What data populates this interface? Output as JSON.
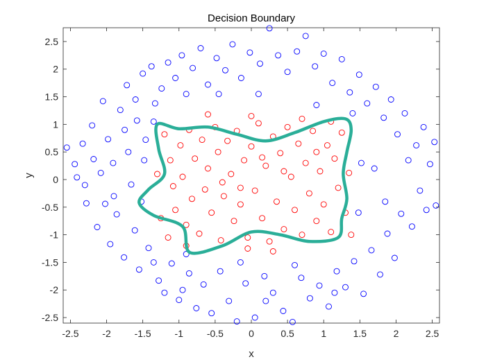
{
  "chart_data": {
    "type": "scatter",
    "title": "Decision Boundary",
    "xlabel": "x",
    "ylabel": "y",
    "xlim": [
      -2.6,
      2.6
    ],
    "ylim": [
      -2.6,
      2.75
    ],
    "xticks": [
      -2.5,
      -2,
      -1.5,
      -1,
      -0.5,
      0,
      0.5,
      1,
      1.5,
      2,
      2.5
    ],
    "yticks": [
      -2.5,
      -2,
      -1.5,
      -1,
      -0.5,
      0,
      0.5,
      1,
      1.5,
      2,
      2.5
    ],
    "grid": false,
    "box": true,
    "series": [
      {
        "marker": "circle-open",
        "color": "#0000ff",
        "region": "outer",
        "points": [
          [
            -2.55,
            0.58
          ],
          [
            -2.44,
            0.28
          ],
          [
            -2.41,
            0.04
          ],
          [
            -2.33,
            0.65
          ],
          [
            -2.28,
            -0.43
          ],
          [
            -2.2,
            0.98
          ],
          [
            -2.18,
            0.37
          ],
          [
            -2.13,
            -0.86
          ],
          [
            -2.08,
            0.12
          ],
          [
            -2.02,
            -0.44
          ],
          [
            -2.05,
            1.42
          ],
          [
            -1.98,
            0.73
          ],
          [
            -1.95,
            -1.17
          ],
          [
            -1.91,
            0.3
          ],
          [
            -1.86,
            -0.63
          ],
          [
            -1.81,
            1.26
          ],
          [
            -1.76,
            -1.41
          ],
          [
            -1.72,
            1.71
          ],
          [
            -1.7,
            0.5
          ],
          [
            -1.66,
            -0.09
          ],
          [
            -1.61,
            -0.92
          ],
          [
            -1.58,
            1.07
          ],
          [
            -1.55,
            -1.63
          ],
          [
            -1.5,
            1.92
          ],
          [
            -1.46,
            0.72
          ],
          [
            -1.42,
            -1.24
          ],
          [
            -1.38,
            2.05
          ],
          [
            -1.33,
            1.38
          ],
          [
            -1.28,
            -1.83
          ],
          [
            -1.24,
            1.65
          ],
          [
            -1.2,
            -2.05
          ],
          [
            -1.15,
            2.12
          ],
          [
            -1.1,
            -1.52
          ],
          [
            -1.05,
            1.84
          ],
          [
            -1.0,
            -2.18
          ],
          [
            -0.96,
            2.25
          ],
          [
            -0.9,
            1.55
          ],
          [
            -0.86,
            -1.7
          ],
          [
            -0.81,
            2.02
          ],
          [
            -0.76,
            -2.33
          ],
          [
            -0.7,
            2.38
          ],
          [
            -0.66,
            -1.9
          ],
          [
            -0.6,
            1.72
          ],
          [
            -0.55,
            -2.42
          ],
          [
            -0.48,
            2.2
          ],
          [
            -0.43,
            -1.66
          ],
          [
            -0.36,
            1.98
          ],
          [
            -0.31,
            -2.2
          ],
          [
            -0.26,
            2.45
          ],
          [
            -0.2,
            -2.57
          ],
          [
            -0.14,
            1.84
          ],
          [
            -0.08,
            -1.88
          ],
          [
            -0.02,
            2.3
          ],
          [
            0.05,
            -2.5
          ],
          [
            0.12,
            2.1
          ],
          [
            0.18,
            -1.75
          ],
          [
            0.25,
            2.74
          ],
          [
            0.3,
            -2.05
          ],
          [
            0.37,
            2.25
          ],
          [
            0.44,
            -2.38
          ],
          [
            0.5,
            1.95
          ],
          [
            0.57,
            -2.58
          ],
          [
            0.63,
            2.32
          ],
          [
            0.69,
            -1.78
          ],
          [
            0.75,
            2.6
          ],
          [
            0.81,
            -2.15
          ],
          [
            0.88,
            2.05
          ],
          [
            0.94,
            -1.92
          ],
          [
            1.0,
            2.28
          ],
          [
            1.07,
            -2.3
          ],
          [
            1.12,
            1.75
          ],
          [
            1.18,
            -1.66
          ],
          [
            1.25,
            2.18
          ],
          [
            1.3,
            -1.95
          ],
          [
            1.36,
            1.58
          ],
          [
            1.42,
            -1.48
          ],
          [
            1.49,
            1.9
          ],
          [
            1.55,
            -2.07
          ],
          [
            1.6,
            1.38
          ],
          [
            1.66,
            -1.28
          ],
          [
            1.72,
            1.68
          ],
          [
            1.78,
            -1.72
          ],
          [
            1.83,
            1.12
          ],
          [
            1.88,
            -0.98
          ],
          [
            1.93,
            1.45
          ],
          [
            1.98,
            -1.42
          ],
          [
            2.02,
            0.82
          ],
          [
            2.07,
            -0.62
          ],
          [
            2.12,
            1.2
          ],
          [
            2.17,
            0.35
          ],
          [
            2.22,
            -0.85
          ],
          [
            2.28,
            0.62
          ],
          [
            2.33,
            -0.2
          ],
          [
            2.38,
            0.95
          ],
          [
            2.42,
            -0.55
          ],
          [
            2.47,
            0.28
          ],
          [
            2.53,
            0.68
          ],
          [
            2.55,
            -0.47
          ],
          [
            -2.3,
            -0.1
          ],
          [
            -1.9,
            -0.3
          ],
          [
            -1.75,
            0.9
          ],
          [
            -1.6,
            1.45
          ],
          [
            -1.35,
            -1.5
          ],
          [
            -0.95,
            -2.0
          ],
          [
            0.2,
            -2.2
          ],
          [
            1.15,
            -2.05
          ],
          [
            1.7,
            0.2
          ],
          [
            1.85,
            -0.4
          ],
          [
            -0.45,
            1.55
          ],
          [
            0.6,
            -1.55
          ],
          [
            1.4,
            1.2
          ],
          [
            -1.35,
            1.05
          ],
          [
            -1.48,
            0.35
          ],
          [
            -1.52,
            -0.4
          ],
          [
            1.52,
            0.3
          ],
          [
            1.48,
            -0.6
          ],
          [
            0.9,
            1.35
          ],
          [
            -0.9,
            -1.35
          ],
          [
            0.1,
            1.55
          ],
          [
            -0.15,
            -1.5
          ]
        ]
      },
      {
        "marker": "circle-open",
        "color": "#ff0000",
        "region": "inner",
        "points": [
          [
            -1.2,
            0.82
          ],
          [
            -1.12,
            0.35
          ],
          [
            -1.08,
            -0.12
          ],
          [
            -1.05,
            -0.55
          ],
          [
            -0.98,
            0.62
          ],
          [
            -0.95,
            0.05
          ],
          [
            -0.9,
            -0.82
          ],
          [
            -0.86,
            0.9
          ],
          [
            -0.82,
            -0.35
          ],
          [
            -0.78,
            0.38
          ],
          [
            -0.72,
            -0.98
          ],
          [
            -0.68,
            0.72
          ],
          [
            -0.64,
            -0.18
          ],
          [
            -0.6,
            0.2
          ],
          [
            -0.55,
            -0.6
          ],
          [
            -0.5,
            0.95
          ],
          [
            -0.46,
            0.5
          ],
          [
            -0.42,
            -1.1
          ],
          [
            -0.38,
            -0.3
          ],
          [
            -0.33,
            0.7
          ],
          [
            -0.28,
            0.1
          ],
          [
            -0.24,
            -0.75
          ],
          [
            -0.2,
            0.88
          ],
          [
            -0.15,
            -0.45
          ],
          [
            -0.1,
            0.35
          ],
          [
            -0.05,
            -1.05
          ],
          [
            0.0,
            0.6
          ],
          [
            0.05,
            -0.2
          ],
          [
            0.1,
            1.02
          ],
          [
            0.15,
            -0.7
          ],
          [
            0.2,
            0.25
          ],
          [
            0.25,
            -1.12
          ],
          [
            0.3,
            0.78
          ],
          [
            0.35,
            -0.4
          ],
          [
            0.4,
            0.48
          ],
          [
            0.45,
            -0.9
          ],
          [
            0.5,
            0.95
          ],
          [
            0.55,
            0.05
          ],
          [
            0.6,
            -0.55
          ],
          [
            0.65,
            0.65
          ],
          [
            0.7,
            -1.0
          ],
          [
            0.75,
            0.3
          ],
          [
            0.8,
            -0.25
          ],
          [
            0.85,
            0.88
          ],
          [
            0.9,
            -0.75
          ],
          [
            0.95,
            0.15
          ],
          [
            1.0,
            -0.45
          ],
          [
            1.05,
            0.62
          ],
          [
            1.1,
            -0.95
          ],
          [
            1.15,
            0.38
          ],
          [
            1.2,
            -0.15
          ],
          [
            1.25,
            0.85
          ],
          [
            1.3,
            -0.6
          ],
          [
            1.35,
            0.12
          ],
          [
            1.38,
            -1.0
          ],
          [
            -1.3,
            0.1
          ],
          [
            -1.25,
            -0.7
          ],
          [
            -1.15,
            -1.05
          ],
          [
            0.0,
            1.15
          ],
          [
            -0.05,
            -1.25
          ],
          [
            0.7,
            1.1
          ],
          [
            0.3,
            -1.3
          ],
          [
            -0.6,
            1.18
          ],
          [
            1.1,
            1.05
          ],
          [
            -0.9,
            -1.2
          ],
          [
            0.45,
            0.15
          ],
          [
            -0.4,
            -0.05
          ],
          [
            0.15,
            0.4
          ],
          [
            -0.15,
            -0.15
          ],
          [
            0.9,
            0.5
          ]
        ]
      }
    ],
    "boundary": {
      "color": "#2aae98",
      "points": [
        [
          -1.3,
          1.0
        ],
        [
          -1.0,
          0.92
        ],
        [
          -0.6,
          0.95
        ],
        [
          -0.2,
          0.82
        ],
        [
          0.2,
          0.7
        ],
        [
          0.6,
          0.85
        ],
        [
          1.0,
          1.05
        ],
        [
          1.3,
          1.1
        ],
        [
          1.38,
          0.9
        ],
        [
          1.32,
          0.5
        ],
        [
          1.27,
          0.1
        ],
        [
          1.32,
          -0.35
        ],
        [
          1.25,
          -0.7
        ],
        [
          1.2,
          -1.05
        ],
        [
          0.8,
          -1.12
        ],
        [
          0.4,
          -1.0
        ],
        [
          0.0,
          -0.95
        ],
        [
          -0.4,
          -1.2
        ],
        [
          -0.85,
          -1.32
        ],
        [
          -0.95,
          -0.85
        ],
        [
          -1.35,
          -0.65
        ],
        [
          -1.55,
          -0.42
        ],
        [
          -1.42,
          -0.18
        ],
        [
          -1.2,
          0.1
        ],
        [
          -1.28,
          0.55
        ]
      ]
    }
  }
}
